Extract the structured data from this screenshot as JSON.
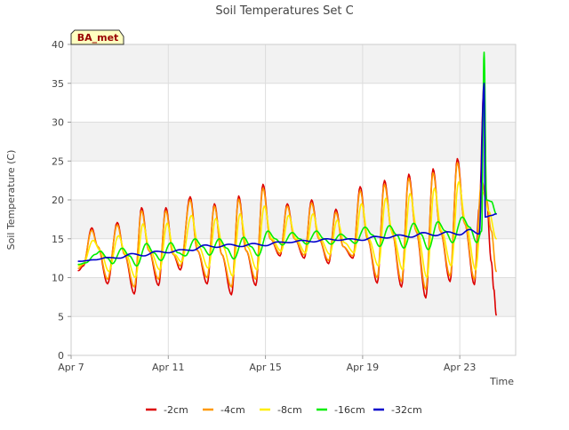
{
  "chart_data": {
    "type": "line",
    "title": "Soil Temperatures Set C",
    "xlabel": "Time",
    "ylabel": "Soil Temperature (C)",
    "badge": "BA_met",
    "ylim": [
      0,
      40
    ],
    "y_ticks": [
      0,
      5,
      10,
      15,
      20,
      25,
      30,
      35,
      40
    ],
    "xlim_days": [
      0,
      18.3
    ],
    "x_ticks": [
      {
        "day": 0,
        "label": "Apr 7"
      },
      {
        "day": 4,
        "label": "Apr 11"
      },
      {
        "day": 8,
        "label": "Apr 15"
      },
      {
        "day": 12,
        "label": "Apr 19"
      },
      {
        "day": 16,
        "label": "Apr 23"
      }
    ],
    "grid": true,
    "legend_position": "bottom",
    "series": [
      {
        "name": "-2cm",
        "color": "#dd0000",
        "points": [
          [
            0.3,
            10.9
          ],
          [
            0.5,
            11.5
          ],
          [
            0.85,
            16.4
          ],
          [
            1.1,
            14
          ],
          [
            1.5,
            9.2
          ],
          [
            1.9,
            17.1
          ],
          [
            2.2,
            13
          ],
          [
            2.6,
            7.9
          ],
          [
            2.9,
            19
          ],
          [
            3.2,
            13.5
          ],
          [
            3.6,
            9
          ],
          [
            3.9,
            19
          ],
          [
            4.2,
            13
          ],
          [
            4.5,
            11
          ],
          [
            4.9,
            20.4
          ],
          [
            5.2,
            13.5
          ],
          [
            5.6,
            9.2
          ],
          [
            5.9,
            19.5
          ],
          [
            6.2,
            13
          ],
          [
            6.6,
            7.8
          ],
          [
            6.9,
            20.5
          ],
          [
            7.2,
            13.5
          ],
          [
            7.6,
            9
          ],
          [
            7.9,
            22
          ],
          [
            8.2,
            15
          ],
          [
            8.6,
            12.8
          ],
          [
            8.9,
            19.5
          ],
          [
            9.2,
            15
          ],
          [
            9.6,
            12.5
          ],
          [
            9.9,
            20
          ],
          [
            10.2,
            15
          ],
          [
            10.6,
            11.8
          ],
          [
            10.9,
            18.8
          ],
          [
            11.2,
            14
          ],
          [
            11.6,
            12.5
          ],
          [
            11.9,
            21.7
          ],
          [
            12.2,
            15
          ],
          [
            12.6,
            9.3
          ],
          [
            12.9,
            22.5
          ],
          [
            13.2,
            16
          ],
          [
            13.6,
            8.8
          ],
          [
            13.9,
            23.3
          ],
          [
            14.2,
            16
          ],
          [
            14.6,
            7.4
          ],
          [
            14.9,
            24
          ],
          [
            15.2,
            16
          ],
          [
            15.6,
            9.5
          ],
          [
            15.9,
            25.3
          ],
          [
            16.2,
            17
          ],
          [
            16.6,
            9.1
          ],
          [
            16.8,
            19
          ],
          [
            17.0,
            35
          ],
          [
            17.1,
            20
          ],
          [
            17.3,
            12
          ],
          [
            17.4,
            8.5
          ],
          [
            17.5,
            5.2
          ]
        ]
      },
      {
        "name": "-4cm",
        "color": "#ff9900",
        "points": [
          [
            0.3,
            11.2
          ],
          [
            0.5,
            11.7
          ],
          [
            0.85,
            16.1
          ],
          [
            1.1,
            14
          ],
          [
            1.5,
            9.8
          ],
          [
            1.9,
            16.8
          ],
          [
            2.2,
            13
          ],
          [
            2.6,
            8.8
          ],
          [
            2.9,
            18.6
          ],
          [
            3.2,
            13.5
          ],
          [
            3.6,
            9.8
          ],
          [
            3.9,
            18.6
          ],
          [
            4.2,
            13
          ],
          [
            4.5,
            11.5
          ],
          [
            4.9,
            20
          ],
          [
            5.2,
            13.5
          ],
          [
            5.6,
            10
          ],
          [
            5.9,
            19.2
          ],
          [
            6.2,
            13
          ],
          [
            6.6,
            8.8
          ],
          [
            6.9,
            20.1
          ],
          [
            7.2,
            13.5
          ],
          [
            7.6,
            9.8
          ],
          [
            7.9,
            21.5
          ],
          [
            8.2,
            15
          ],
          [
            8.6,
            13.1
          ],
          [
            8.9,
            19.2
          ],
          [
            9.2,
            15
          ],
          [
            9.6,
            12.9
          ],
          [
            9.9,
            19.6
          ],
          [
            10.2,
            15
          ],
          [
            10.6,
            12.2
          ],
          [
            10.9,
            18.4
          ],
          [
            11.2,
            14
          ],
          [
            11.6,
            12.8
          ],
          [
            11.9,
            21.2
          ],
          [
            12.2,
            15
          ],
          [
            12.6,
            10
          ],
          [
            12.9,
            22
          ],
          [
            13.2,
            16
          ],
          [
            13.6,
            9.5
          ],
          [
            13.9,
            22.8
          ],
          [
            14.2,
            16
          ],
          [
            14.6,
            8.5
          ],
          [
            14.9,
            23.5
          ],
          [
            15.2,
            16
          ],
          [
            15.6,
            10.2
          ],
          [
            15.9,
            24.8
          ],
          [
            16.2,
            17
          ],
          [
            16.6,
            9.8
          ],
          [
            16.9,
            22.5
          ],
          [
            17.1,
            20
          ],
          [
            17.3,
            16
          ],
          [
            17.5,
            10.8
          ]
        ]
      },
      {
        "name": "-8cm",
        "color": "#ffee00",
        "points": [
          [
            0.3,
            11.5
          ],
          [
            0.5,
            11.8
          ],
          [
            0.9,
            14.8
          ],
          [
            1.2,
            13.5
          ],
          [
            1.55,
            10.8
          ],
          [
            1.95,
            15.4
          ],
          [
            2.25,
            13
          ],
          [
            2.65,
            10
          ],
          [
            2.95,
            16.9
          ],
          [
            3.25,
            13.5
          ],
          [
            3.65,
            11
          ],
          [
            3.95,
            17
          ],
          [
            4.25,
            13
          ],
          [
            4.55,
            12
          ],
          [
            4.95,
            18
          ],
          [
            5.25,
            14
          ],
          [
            5.65,
            11.2
          ],
          [
            5.95,
            17.6
          ],
          [
            6.25,
            14
          ],
          [
            6.65,
            10.2
          ],
          [
            6.95,
            18.2
          ],
          [
            7.25,
            14
          ],
          [
            7.65,
            11
          ],
          [
            7.95,
            19.2
          ],
          [
            8.25,
            15
          ],
          [
            8.65,
            13.4
          ],
          [
            8.95,
            18
          ],
          [
            9.25,
            15
          ],
          [
            9.65,
            13.2
          ],
          [
            9.95,
            18.2
          ],
          [
            10.25,
            15
          ],
          [
            10.65,
            13
          ],
          [
            10.95,
            17.4
          ],
          [
            11.25,
            14.5
          ],
          [
            11.65,
            13.2
          ],
          [
            11.95,
            19.5
          ],
          [
            12.25,
            15
          ],
          [
            12.65,
            11.5
          ],
          [
            12.95,
            20.2
          ],
          [
            13.25,
            15.5
          ],
          [
            13.65,
            11
          ],
          [
            13.95,
            20.8
          ],
          [
            14.25,
            16
          ],
          [
            14.65,
            10
          ],
          [
            14.95,
            21.5
          ],
          [
            15.25,
            16
          ],
          [
            15.65,
            11.5
          ],
          [
            15.95,
            22.3
          ],
          [
            16.25,
            17
          ],
          [
            16.65,
            11
          ],
          [
            16.95,
            21
          ],
          [
            17.2,
            18.5
          ],
          [
            17.5,
            15
          ]
        ]
      },
      {
        "name": "-16cm",
        "color": "#00ee00",
        "points": [
          [
            0.3,
            11.7
          ],
          [
            0.6,
            11.9
          ],
          [
            1.0,
            13
          ],
          [
            1.2,
            13.4
          ],
          [
            1.5,
            12.5
          ],
          [
            1.7,
            11.8
          ],
          [
            2.1,
            13.8
          ],
          [
            2.4,
            12.8
          ],
          [
            2.7,
            11.5
          ],
          [
            3.1,
            14.4
          ],
          [
            3.4,
            13.2
          ],
          [
            3.7,
            12.2
          ],
          [
            4.1,
            14.5
          ],
          [
            4.4,
            13.2
          ],
          [
            4.7,
            12.8
          ],
          [
            5.1,
            15
          ],
          [
            5.4,
            14
          ],
          [
            5.7,
            12.9
          ],
          [
            6.1,
            15
          ],
          [
            6.4,
            13.8
          ],
          [
            6.7,
            12.4
          ],
          [
            7.1,
            15.2
          ],
          [
            7.4,
            14
          ],
          [
            7.7,
            12.8
          ],
          [
            8.1,
            16
          ],
          [
            8.4,
            15
          ],
          [
            8.7,
            14.2
          ],
          [
            9.1,
            15.8
          ],
          [
            9.4,
            15
          ],
          [
            9.7,
            14.3
          ],
          [
            10.1,
            16
          ],
          [
            10.4,
            15
          ],
          [
            10.7,
            14.3
          ],
          [
            11.1,
            15.6
          ],
          [
            11.4,
            15
          ],
          [
            11.7,
            14.4
          ],
          [
            12.1,
            16.5
          ],
          [
            12.4,
            15.5
          ],
          [
            12.7,
            14
          ],
          [
            13.1,
            16.7
          ],
          [
            13.4,
            15.5
          ],
          [
            13.7,
            13.8
          ],
          [
            14.1,
            17
          ],
          [
            14.4,
            15.6
          ],
          [
            14.7,
            13.6
          ],
          [
            15.1,
            17.2
          ],
          [
            15.4,
            16
          ],
          [
            15.7,
            14.5
          ],
          [
            16.1,
            17.8
          ],
          [
            16.4,
            16.5
          ],
          [
            16.7,
            14.5
          ],
          [
            16.9,
            16
          ],
          [
            17.0,
            39
          ],
          [
            17.1,
            20
          ],
          [
            17.3,
            19.8
          ],
          [
            17.5,
            18.2
          ]
        ]
      },
      {
        "name": "-32cm",
        "color": "#0000cc",
        "points": [
          [
            0.3,
            12.1
          ],
          [
            1.0,
            12.3
          ],
          [
            1.5,
            12.6
          ],
          [
            2.0,
            12.5
          ],
          [
            2.5,
            13.1
          ],
          [
            3.0,
            12.8
          ],
          [
            3.5,
            13.4
          ],
          [
            4.0,
            13.2
          ],
          [
            4.5,
            13.6
          ],
          [
            5.0,
            13.5
          ],
          [
            5.5,
            14.2
          ],
          [
            6.0,
            13.9
          ],
          [
            6.5,
            14.3
          ],
          [
            7.0,
            14
          ],
          [
            7.5,
            14.4
          ],
          [
            8.0,
            14.1
          ],
          [
            8.5,
            14.6
          ],
          [
            9.0,
            14.5
          ],
          [
            9.5,
            14.8
          ],
          [
            10.0,
            14.6
          ],
          [
            10.5,
            15
          ],
          [
            11.0,
            14.8
          ],
          [
            11.5,
            15
          ],
          [
            12.0,
            14.8
          ],
          [
            12.5,
            15.3
          ],
          [
            13.0,
            15.1
          ],
          [
            13.5,
            15.5
          ],
          [
            14.0,
            15.2
          ],
          [
            14.5,
            15.8
          ],
          [
            15.0,
            15.4
          ],
          [
            15.5,
            15.9
          ],
          [
            16.0,
            15.5
          ],
          [
            16.4,
            16.2
          ],
          [
            16.8,
            15.6
          ],
          [
            17.0,
            35
          ],
          [
            17.05,
            17.8
          ],
          [
            17.3,
            18
          ],
          [
            17.5,
            18.2
          ]
        ]
      }
    ]
  }
}
